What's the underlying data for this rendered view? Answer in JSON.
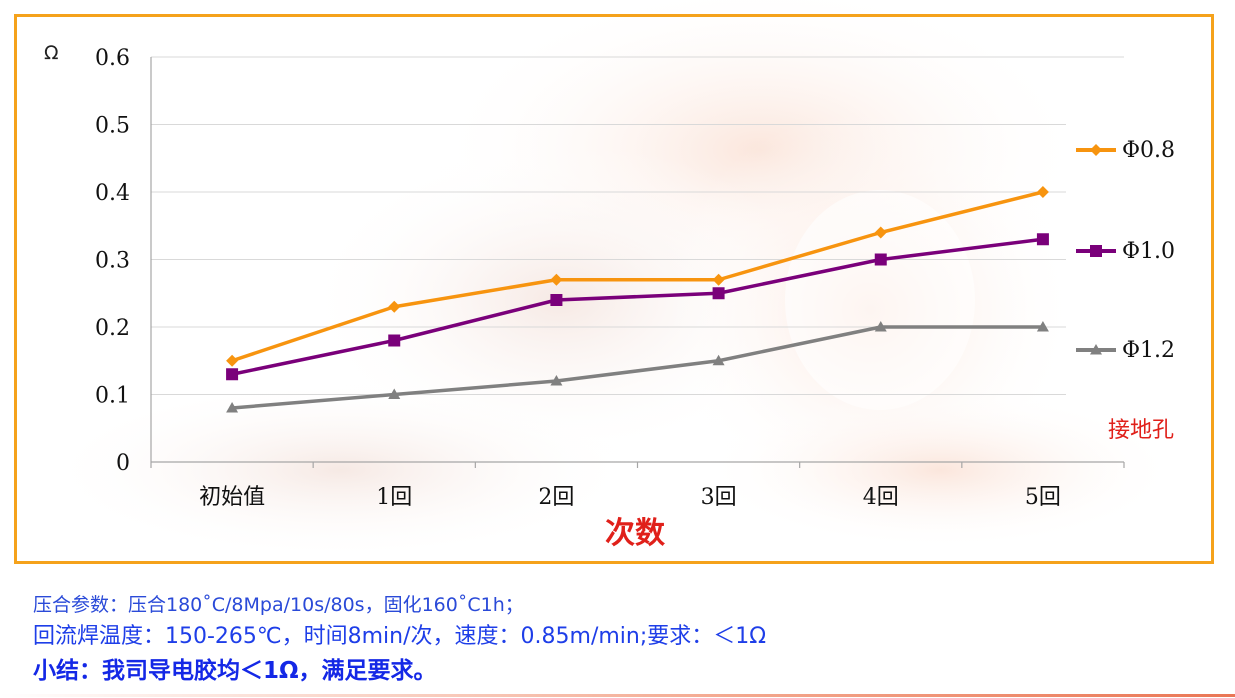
{
  "chart_data": {
    "type": "line",
    "categories": [
      "初始值",
      "1回",
      "2回",
      "3回",
      "4回",
      "5回"
    ],
    "series": [
      {
        "name": "Φ0.8",
        "values": [
          0.15,
          0.23,
          0.27,
          0.27,
          0.34,
          0.4
        ],
        "color": "#f7940f",
        "marker": "diamond"
      },
      {
        "name": "Φ1.0",
        "values": [
          0.13,
          0.18,
          0.24,
          0.25,
          0.3,
          0.33
        ],
        "color": "#7a007a",
        "marker": "square"
      },
      {
        "name": "Φ1.2",
        "values": [
          0.08,
          0.1,
          0.12,
          0.15,
          0.2,
          0.2
        ],
        "color": "#808080",
        "marker": "triangle"
      }
    ],
    "yticks": [
      "0",
      "0.1",
      "0.2",
      "0.3",
      "0.4",
      "0.5",
      "0.6"
    ],
    "ylim": [
      0,
      0.6
    ],
    "ylabel": "Ω",
    "xlabel": "次数",
    "legend_position": "right",
    "grid": true,
    "annotation": "接地孔"
  },
  "notes": {
    "line1": "压合参数：压合180˚C/8Mpa/10s/80s，固化160˚C1h；",
    "line2": "回流焊温度：150-265℃，时间8min/次，速度：0.85m/min;要求：＜1Ω",
    "line3": "小结：我司导电胶均＜1Ω，满足要求。"
  },
  "colors": {
    "frame_border": "#f5a21b",
    "accent_red": "#e0201a",
    "note_blue": "#1e3ee8"
  }
}
